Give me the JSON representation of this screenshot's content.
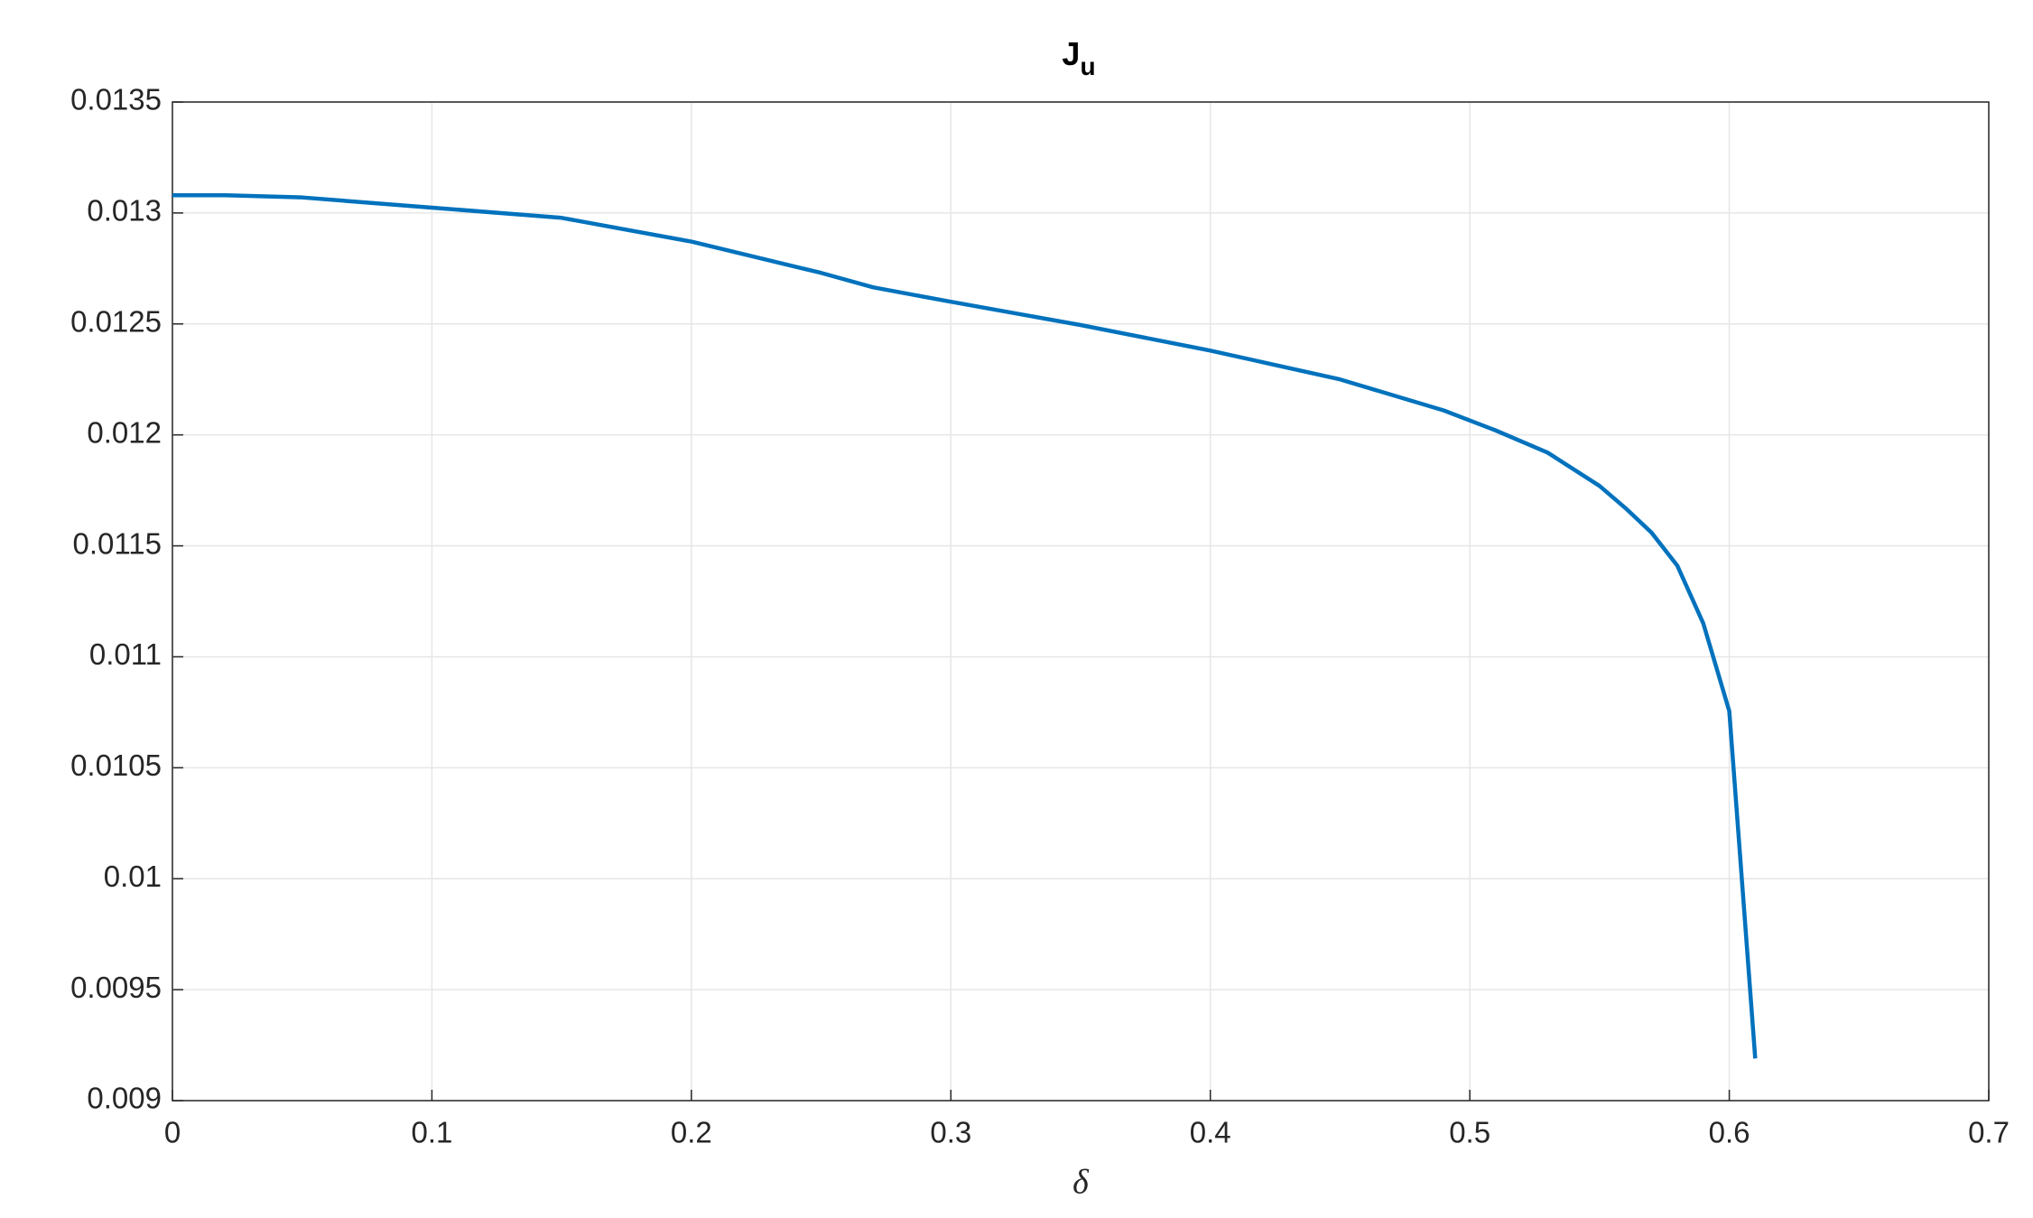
{
  "chart_data": {
    "type": "line",
    "title": {
      "main": "J",
      "subscript": "u"
    },
    "x_label": "δ",
    "x": [
      0,
      0.02,
      0.05,
      0.1,
      0.15,
      0.2,
      0.25,
      0.27,
      0.3,
      0.35,
      0.4,
      0.45,
      0.49,
      0.51,
      0.53,
      0.55,
      0.56,
      0.57,
      0.58,
      0.59,
      0.6,
      0.61
    ],
    "series": [
      {
        "color": "#0072bd",
        "values": [
          0.01308,
          0.01308,
          0.01307,
          0.013024,
          0.012978,
          0.012871,
          0.01273,
          0.012665,
          0.0126,
          0.012495,
          0.01238,
          0.01225,
          0.01211,
          0.01202,
          0.01192,
          0.01177,
          0.01167,
          0.01156,
          0.01141,
          0.01115,
          0.010755,
          0.00919
        ]
      }
    ],
    "xlim": [
      0,
      0.7
    ],
    "xticks": [
      0,
      0.1,
      0.2,
      0.3,
      0.4,
      0.5,
      0.6,
      0.7
    ],
    "ylim": [
      0.009,
      0.0135
    ],
    "yticks": [
      0.009,
      0.0095,
      0.01,
      0.0105,
      0.011,
      0.0115,
      0.012,
      0.0125,
      0.013,
      0.0135
    ],
    "grid": true
  }
}
